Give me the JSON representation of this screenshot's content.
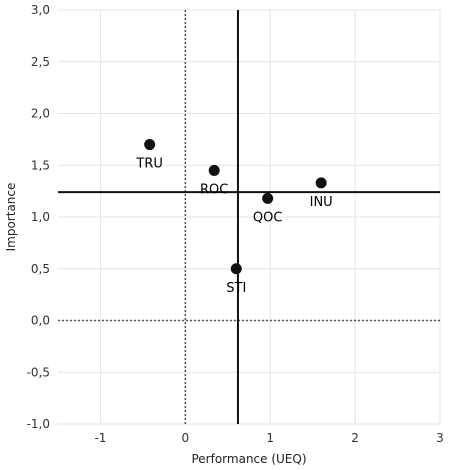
{
  "chart_data": {
    "type": "scatter",
    "title": "",
    "xlabel": "Performance (UEQ)",
    "ylabel": "Importance",
    "xlim": [
      -1.5,
      3.0
    ],
    "ylim": [
      -1.0,
      3.0
    ],
    "x_ticks": [
      -1,
      0,
      1,
      2,
      3
    ],
    "x_tick_labels": [
      "-1",
      "0",
      "1",
      "2",
      "3"
    ],
    "y_ticks": [
      3.0,
      2.5,
      2.0,
      1.5,
      1.0,
      0.5,
      0.0,
      -0.5,
      -1.0
    ],
    "y_tick_labels": [
      "3,0",
      "2,5",
      "2,0",
      "1,5",
      "1,0",
      "0,5",
      "0,0",
      "-0,5",
      "-1,0"
    ],
    "grid": true,
    "reference_lines": {
      "vertical_solid": 0.62,
      "horizontal_solid": 1.24,
      "vertical_dotted": 0.0,
      "horizontal_dotted": 0.0
    },
    "points": [
      {
        "label": "TRU",
        "x": -0.42,
        "y": 1.7
      },
      {
        "label": "ROC",
        "x": 0.34,
        "y": 1.45
      },
      {
        "label": "QOC",
        "x": 0.97,
        "y": 1.18
      },
      {
        "label": "INU",
        "x": 1.6,
        "y": 1.33
      },
      {
        "label": "STI",
        "x": 0.6,
        "y": 0.5
      }
    ],
    "colors": {
      "points": "#111111",
      "grid": "#e4e4e4",
      "reference": "#111111"
    }
  }
}
